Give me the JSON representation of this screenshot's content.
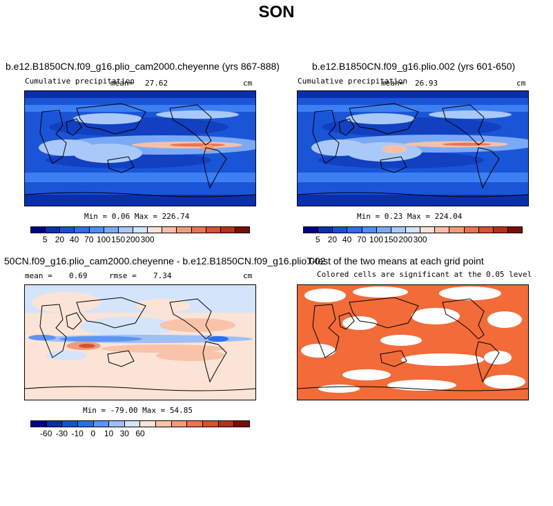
{
  "title": "SON",
  "panels": [
    {
      "title": "b.e12.B1850CN.f09_g16.plio_cam2000.cheyenne (yrs 867-888)",
      "variable": "Cumulative precipitation",
      "mean_label": "mean=",
      "mean": "27.62",
      "units": "cm",
      "min_max": "Min =    0.06 Max = 226.74"
    },
    {
      "title": "b.e12.B1850CN.f09_g16.plio.002 (yrs 601-650)",
      "variable": "Cumulative precipitation",
      "mean_label": "mean=",
      "mean": "26.93",
      "units": "cm",
      "min_max": "Min =    0.23 Max = 224.04"
    },
    {
      "title": "50CN.f09_g16.plio_cam2000.cheyenne - b.e12.B1850CN.f09_g16.plio.002",
      "mean_label": "mean =",
      "mean": "0.69",
      "rmse_label": "rmse =",
      "rmse": "7.34",
      "units": "cm",
      "min_max": "Min = -79.00 Max =  54.85"
    },
    {
      "title": "T-test of the two means at each grid point",
      "subtitle": "Colored cells are significant at the 0.05 level"
    }
  ],
  "chart_data": [
    {
      "type": "heatmap",
      "title": "b.e12.B1850CN.f09_g16.plio_cam2000.cheyenne (yrs 867-888)",
      "variable": "Cumulative precipitation",
      "units": "cm",
      "mean": 27.62,
      "min": 0.06,
      "max": 226.74,
      "colorbar_ticks": [
        "5",
        "20",
        "40",
        "70",
        "100",
        "150",
        "200",
        "300"
      ],
      "colors": [
        "#00008c",
        "#0a2fae",
        "#1551d6",
        "#2a6ef0",
        "#4d8ef5",
        "#7aaaf7",
        "#a9c9f9",
        "#d4e4fb",
        "#fbe3d6",
        "#f7c0a6",
        "#f29a79",
        "#eb7450",
        "#d9502e",
        "#b6301a",
        "#7a0e07"
      ]
    },
    {
      "type": "heatmap",
      "title": "b.e12.B1850CN.f09_g16.plio.002 (yrs 601-650)",
      "variable": "Cumulative precipitation",
      "units": "cm",
      "mean": 26.93,
      "min": 0.23,
      "max": 224.04,
      "colorbar_ticks": [
        "5",
        "20",
        "40",
        "70",
        "100",
        "150",
        "200",
        "300"
      ],
      "colors": [
        "#00008c",
        "#0a2fae",
        "#1551d6",
        "#2a6ef0",
        "#4d8ef5",
        "#7aaaf7",
        "#a9c9f9",
        "#d4e4fb",
        "#fbe3d6",
        "#f7c0a6",
        "#f29a79",
        "#eb7450",
        "#d9502e",
        "#b6301a",
        "#7a0e07"
      ]
    },
    {
      "type": "heatmap",
      "title": "50CN.f09_g16.plio_cam2000.cheyenne - b.e12.B1850CN.f09_g16.plio.002",
      "units": "cm",
      "mean": 0.69,
      "rmse": 7.34,
      "min": -79.0,
      "max": 54.85,
      "colorbar_ticks": [
        "-60",
        "-30",
        "-10",
        "0",
        "10",
        "30",
        "60"
      ],
      "colors": [
        "#00008c",
        "#0a2fae",
        "#1551d6",
        "#2a6ef0",
        "#5d94f3",
        "#9ebff8",
        "#d4e4fb",
        "#fbe3d6",
        "#f8c3a8",
        "#f29a79",
        "#eb7450",
        "#d9502e",
        "#b6301a",
        "#7a0e07"
      ]
    },
    {
      "type": "heatmap",
      "title": "T-test of the two means at each grid point",
      "subtitle": "Colored cells are significant at the 0.05 level",
      "significant_color": "#f26b38"
    }
  ]
}
